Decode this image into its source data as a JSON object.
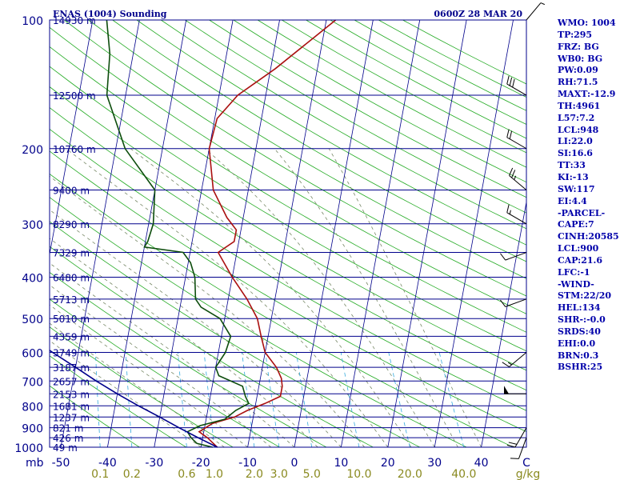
{
  "header": {
    "station_title": "ENAS (1004) Sounding",
    "valid_time": "0600Z 28 MAR 20"
  },
  "sidebar": {
    "items": [
      "WMO: 1004",
      "TP:295",
      "FRZ: BG",
      "WB0: BG",
      "PW:0.09",
      "RH:71.5",
      "MAXT:-12.9",
      "TH:4961",
      "L57:7.2",
      "LCL:948",
      "LI:22.0",
      "SI:16.6",
      "TT:33",
      "KI:-13",
      "SW:117",
      "EI:4.4",
      "-PARCEL-",
      "CAPE:7",
      "CINH:20585",
      "LCL:900",
      "CAP:21.6",
      "LFC:-1",
      "-WIND-",
      "STM:22/20",
      "HEL:134",
      "SHR-:-0.0",
      "SRDS:40",
      "EHI:0.0",
      "BRN:0.3",
      "BSHR:25"
    ]
  },
  "chart_data": {
    "type": "line",
    "title": "ENAS (1004) Sounding",
    "subtitle": "0600Z 28 MAR 20",
    "xlabel": "C",
    "ylabel": "mb",
    "mixing_ratio_unit": "g/kg",
    "xlim": [
      -50,
      50
    ],
    "ylim": [
      1000,
      100
    ],
    "y_scale": "log",
    "grid": true,
    "pressure_ticks": [
      100,
      200,
      300,
      400,
      500,
      600,
      700,
      800,
      900,
      1000
    ],
    "pressure_tick_labels": [
      "100",
      "200",
      "300",
      "400",
      "500",
      "600",
      "700",
      "800",
      "900",
      "1000"
    ],
    "temperature_ticks": [
      -50,
      -40,
      -30,
      -20,
      -10,
      0,
      10,
      20,
      30,
      40,
      50
    ],
    "temperature_tick_labels": [
      "-50",
      "-40",
      "-30",
      "-20",
      "-10",
      "0",
      "10",
      "20",
      "30",
      "40",
      "C"
    ],
    "mixing_ratio_labels": [
      "0.1",
      "0.2",
      "0.6",
      "1.0",
      "2.0",
      "3.0",
      "5.0",
      "10.0",
      "20.0",
      "40.0",
      "g/kg"
    ],
    "mixing_ratio_values": [
      0.1,
      0.2,
      0.6,
      1.0,
      2.0,
      3.0,
      5.0,
      10.0,
      20.0,
      40.0
    ],
    "height_labels": [
      {
        "p": 100,
        "label": "14930 m"
      },
      {
        "p": 150,
        "label": "12500 m"
      },
      {
        "p": 200,
        "label": "10760 m"
      },
      {
        "p": 250,
        "label": "9400 m"
      },
      {
        "p": 300,
        "label": "8290 m"
      },
      {
        "p": 350,
        "label": "7329 m"
      },
      {
        "p": 400,
        "label": "6480 m"
      },
      {
        "p": 450,
        "label": "5713 m"
      },
      {
        "p": 500,
        "label": "5010 m"
      },
      {
        "p": 550,
        "label": "4359 m"
      },
      {
        "p": 600,
        "label": "3749 m"
      },
      {
        "p": 650,
        "label": "3187 m"
      },
      {
        "p": 700,
        "label": "2657 m"
      },
      {
        "p": 750,
        "label": "2153 m"
      },
      {
        "p": 800,
        "label": "1681 m"
      },
      {
        "p": 850,
        "label": "1237 m"
      },
      {
        "p": 900,
        "label": "821 m"
      },
      {
        "p": 950,
        "label": "426 m"
      },
      {
        "p": 1000,
        "label": "49 m"
      }
    ],
    "series": [
      {
        "color": "#aa1010",
        "points": [
          {
            "p": 1000,
            "t": -16.5
          },
          {
            "p": 950,
            "t": -19.0
          },
          {
            "p": 920,
            "t": -21.0
          },
          {
            "p": 880,
            "t": -18.5
          },
          {
            "p": 850,
            "t": -14.0
          },
          {
            "p": 820,
            "t": -11.5
          },
          {
            "p": 790,
            "t": -8.0
          },
          {
            "p": 760,
            "t": -5.0
          },
          {
            "p": 720,
            "t": -5.0
          },
          {
            "p": 690,
            "t": -5.5
          },
          {
            "p": 650,
            "t": -7.0
          },
          {
            "p": 600,
            "t": -10.0
          },
          {
            "p": 550,
            "t": -11.5
          },
          {
            "p": 500,
            "t": -13.0
          },
          {
            "p": 450,
            "t": -16.0
          },
          {
            "p": 400,
            "t": -20.0
          },
          {
            "p": 350,
            "t": -24.0
          },
          {
            "p": 330,
            "t": -21.0
          },
          {
            "p": 310,
            "t": -21.0
          },
          {
            "p": 290,
            "t": -23.5
          },
          {
            "p": 250,
            "t": -27.5
          },
          {
            "p": 200,
            "t": -30.0
          },
          {
            "p": 170,
            "t": -29.5
          },
          {
            "p": 150,
            "t": -26.0
          },
          {
            "p": 130,
            "t": -19.0
          },
          {
            "p": 110,
            "t": -12.0
          },
          {
            "p": 100,
            "t": -8.0
          }
        ]
      },
      {
        "color": "#0d4d0d",
        "points": [
          {
            "p": 1000,
            "t": -17.5
          },
          {
            "p": 980,
            "t": -21.0
          },
          {
            "p": 950,
            "t": -22.5
          },
          {
            "p": 920,
            "t": -23.5
          },
          {
            "p": 890,
            "t": -21.0
          },
          {
            "p": 860,
            "t": -16.0
          },
          {
            "p": 820,
            "t": -14.0
          },
          {
            "p": 790,
            "t": -11.5
          },
          {
            "p": 760,
            "t": -12.5
          },
          {
            "p": 720,
            "t": -13.5
          },
          {
            "p": 680,
            "t": -19.0
          },
          {
            "p": 650,
            "t": -20.0
          },
          {
            "p": 600,
            "t": -18.5
          },
          {
            "p": 550,
            "t": -18.0
          },
          {
            "p": 500,
            "t": -21.0
          },
          {
            "p": 470,
            "t": -25.5
          },
          {
            "p": 450,
            "t": -27.0
          },
          {
            "p": 400,
            "t": -28.0
          },
          {
            "p": 370,
            "t": -29.5
          },
          {
            "p": 350,
            "t": -31.5
          },
          {
            "p": 340,
            "t": -40.0
          },
          {
            "p": 330,
            "t": -39.5
          },
          {
            "p": 300,
            "t": -39.0
          },
          {
            "p": 250,
            "t": -40.0
          },
          {
            "p": 200,
            "t": -48.0
          },
          {
            "p": 150,
            "t": -54.0
          },
          {
            "p": 120,
            "t": -55.0
          },
          {
            "p": 100,
            "t": -57.0
          }
        ]
      },
      {
        "color": "#00008b",
        "points": [
          {
            "p": 1000,
            "t": -16.5
          },
          {
            "p": 950,
            "t": -21.0
          },
          {
            "p": 900,
            "t": -25.5
          },
          {
            "p": 850,
            "t": -30.0
          },
          {
            "p": 800,
            "t": -35.0
          },
          {
            "p": 750,
            "t": -40.0
          },
          {
            "p": 700,
            "t": -45.0
          },
          {
            "p": 650,
            "t": -50.0
          },
          {
            "p": 600,
            "t": -55.5
          },
          {
            "p": 550,
            "t": -61.0
          },
          {
            "p": 500,
            "t": -67.0
          },
          {
            "p": 450,
            "t": -73.5
          },
          {
            "p": 400,
            "t": -81.0
          },
          {
            "p": 350,
            "t": -89.0
          },
          {
            "p": 300,
            "t": -98.0
          },
          {
            "p": 250,
            "t": -108.5
          },
          {
            "p": 200,
            "t": -121.5
          },
          {
            "p": 150,
            "t": -137.5
          },
          {
            "p": 100,
            "t": -158.0
          }
        ]
      }
    ],
    "wind_barbs": [
      {
        "p": 100,
        "dir": 40,
        "speed_kt": 5
      },
      {
        "p": 150,
        "dir": 300,
        "speed_kt": 30
      },
      {
        "p": 200,
        "dir": 300,
        "speed_kt": 20
      },
      {
        "p": 250,
        "dir": 310,
        "speed_kt": 25
      },
      {
        "p": 300,
        "dir": 300,
        "speed_kt": 15
      },
      {
        "p": 350,
        "dir": 250,
        "speed_kt": 10
      },
      {
        "p": 450,
        "dir": 250,
        "speed_kt": 10
      },
      {
        "p": 600,
        "dir": 230,
        "speed_kt": 15
      },
      {
        "p": 750,
        "dir": 270,
        "speed_kt": 50
      },
      {
        "p": 900,
        "dir": 210,
        "speed_kt": 20
      },
      {
        "p": 950,
        "dir": 200,
        "speed_kt": 10
      }
    ],
    "colors": {
      "isobar": "#00008b",
      "isotherm": "#00008b",
      "dry_adiabat": "#22aa22",
      "moist_adiabat": "#778866",
      "mixing_ratio": "#33aadd",
      "frame": "#00008b",
      "mixing_label": "#8a8a20"
    }
  }
}
